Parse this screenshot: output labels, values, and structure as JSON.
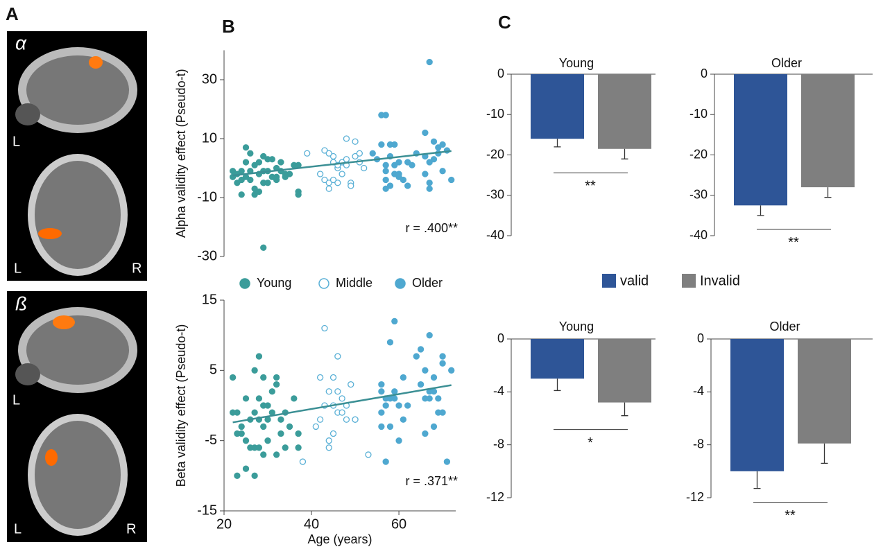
{
  "panel_labels": [
    "A",
    "B",
    "C"
  ],
  "panel_a": {
    "images": [
      {
        "symbol": "α",
        "sagittal_label": "L",
        "axial_labels": [
          "L",
          "R"
        ]
      },
      {
        "symbol": "ß",
        "sagittal_label": "L",
        "axial_labels": [
          "L",
          "R"
        ]
      }
    ]
  },
  "chart_data": [
    {
      "type": "scatter",
      "ylabel": "Alpha validity effect (Pseudo-t)",
      "annotation": "r = .400**",
      "xlim": [
        20,
        73
      ],
      "ylim": [
        -30,
        40
      ],
      "yticks": [
        30,
        10,
        -10,
        -30
      ],
      "series": [
        {
          "name": "Young",
          "color": "#3b9c9a",
          "marker": "filled",
          "x": [
            22,
            22,
            23,
            23,
            24,
            24,
            24,
            25,
            25,
            25,
            26,
            26,
            26,
            27,
            27,
            27,
            28,
            28,
            28,
            29,
            29,
            29,
            29,
            30,
            30,
            31,
            31,
            32,
            32,
            33,
            33,
            34,
            34,
            36,
            37,
            37,
            37,
            32,
            35,
            30
          ],
          "y": [
            -1,
            -3,
            -2,
            -5,
            -1,
            -4,
            -9,
            7,
            2,
            -3,
            -4,
            5,
            -1,
            1,
            -7,
            -9,
            -2,
            2,
            -8,
            -27,
            4,
            -1,
            -5,
            3,
            -1,
            -3,
            3,
            0,
            -4,
            -1,
            2,
            -2,
            -3,
            1,
            1,
            -8,
            -9,
            -3,
            -2,
            -5
          ]
        },
        {
          "name": "Middle",
          "color": "#5ab0d6",
          "marker": "open",
          "x": [
            39,
            42,
            43,
            43,
            44,
            44,
            45,
            45,
            45,
            46,
            46,
            47,
            47,
            48,
            48,
            49,
            49,
            50,
            50,
            51,
            51,
            52,
            44,
            46,
            48
          ],
          "y": [
            5,
            -2,
            6,
            -4,
            -5,
            -7,
            4,
            -4,
            2,
            0,
            -5,
            2,
            -2,
            10,
            3,
            -5,
            -6,
            9,
            4,
            5,
            2,
            0,
            5,
            1,
            1
          ]
        },
        {
          "name": "Older",
          "color": "#4fa8d0",
          "marker": "filled",
          "x": [
            54,
            55,
            56,
            56,
            57,
            57,
            57,
            57,
            57,
            58,
            58,
            58,
            59,
            59,
            59,
            60,
            60,
            60,
            62,
            62,
            63,
            64,
            66,
            66,
            66,
            67,
            67,
            67,
            68,
            68,
            69,
            69,
            70,
            70,
            72,
            67,
            61,
            71
          ],
          "y": [
            5,
            3,
            8,
            18,
            18,
            -4,
            -7,
            1,
            -1,
            4,
            -6,
            8,
            -2,
            1,
            8,
            -2,
            -3,
            2,
            2,
            -6,
            1,
            5,
            12,
            4,
            -2,
            2,
            -7,
            -5,
            3,
            9,
            5,
            7,
            8,
            -1,
            -4,
            36,
            -4,
            6
          ]
        }
      ],
      "trend": {
        "color": "#3b8f94",
        "x": [
          22,
          72
        ],
        "y": [
          -2.5,
          5.8
        ]
      }
    },
    {
      "type": "scatter",
      "ylabel": "Beta validity effect (Pseudo-t)",
      "xlabel": "Age (years)",
      "annotation": "r = .371**",
      "xlim": [
        20,
        73
      ],
      "ylim": [
        -15,
        15
      ],
      "yticks": [
        15,
        5,
        -5,
        -15
      ],
      "xticks": [
        20,
        40,
        60
      ],
      "series": [
        {
          "color": "#3b9c9a",
          "marker": "filled",
          "x": [
            22,
            22,
            23,
            23,
            23,
            24,
            24,
            25,
            25,
            25,
            26,
            26,
            27,
            27,
            27,
            27,
            28,
            28,
            28,
            28,
            29,
            29,
            29,
            29,
            30,
            30,
            30,
            31,
            31,
            32,
            32,
            32,
            33,
            33,
            34,
            34,
            35,
            36,
            37,
            37
          ],
          "y": [
            4,
            -1,
            -1,
            -4,
            -10,
            -3,
            -4,
            -5,
            1,
            -9,
            -6,
            -2,
            5,
            -1,
            -6,
            -10,
            7,
            1,
            -2,
            -6,
            4,
            0,
            -3,
            -7,
            0,
            -2,
            -5,
            2,
            -1,
            4,
            3,
            -7,
            -2,
            -4,
            -1,
            -6,
            -3,
            1,
            -4,
            -6
          ]
        },
        {
          "color": "#5ab0d6",
          "marker": "open",
          "x": [
            38,
            42,
            42,
            43,
            43,
            44,
            44,
            44,
            45,
            45,
            45,
            46,
            46,
            46,
            47,
            47,
            48,
            48,
            49,
            50,
            50,
            53,
            41
          ],
          "y": [
            -8,
            -2,
            4,
            11,
            0,
            -5,
            -6,
            2,
            4,
            -4,
            0,
            7,
            2,
            -1,
            1,
            -1,
            -2,
            0,
            3,
            -2,
            -2,
            -7,
            -3
          ]
        },
        {
          "color": "#4fa8d0",
          "marker": "filled",
          "x": [
            56,
            56,
            56,
            56,
            57,
            57,
            57,
            58,
            58,
            58,
            59,
            59,
            59,
            60,
            60,
            61,
            61,
            62,
            64,
            65,
            65,
            66,
            66,
            66,
            67,
            67,
            67,
            68,
            68,
            68,
            69,
            69,
            70,
            70,
            70,
            71,
            72
          ],
          "y": [
            3,
            -1,
            -3,
            2,
            1,
            -8,
            0,
            9,
            1,
            -3,
            12,
            2,
            1,
            0,
            -5,
            -2,
            4,
            0,
            7,
            8,
            3,
            5,
            1,
            -4,
            1,
            2,
            10,
            4,
            2,
            -3,
            1,
            -1,
            -1,
            6,
            7,
            -8,
            5
          ]
        }
      ],
      "trend": {
        "color": "#3b8f94",
        "x": [
          22,
          72
        ],
        "y": [
          -2.4,
          2.9
        ]
      }
    },
    {
      "type": "bar",
      "title": "Young",
      "significance": "**",
      "ylim": [
        -40,
        0
      ],
      "yticks": [
        0,
        -10,
        -20,
        -30,
        -40
      ],
      "series": [
        {
          "name": "valid",
          "color": "#2e5597",
          "values": [
            -16
          ],
          "errors": [
            2
          ]
        },
        {
          "name": "Invalid",
          "color": "#7f7f7f",
          "values": [
            -18.5
          ],
          "errors": [
            2.5
          ]
        }
      ]
    },
    {
      "type": "bar",
      "title": "Older",
      "significance": "**",
      "ylim": [
        -40,
        0
      ],
      "yticks": [
        0,
        -10,
        -20,
        -30,
        -40
      ],
      "series": [
        {
          "color": "#2e5597",
          "values": [
            -32.5
          ],
          "errors": [
            2.5
          ]
        },
        {
          "color": "#7f7f7f",
          "values": [
            -28
          ],
          "errors": [
            2.5
          ]
        }
      ]
    },
    {
      "type": "bar",
      "title": "Young",
      "significance": "*",
      "ylim": [
        -12,
        0
      ],
      "yticks": [
        0,
        -4,
        -8,
        -12
      ],
      "series": [
        {
          "color": "#2e5597",
          "values": [
            -3
          ],
          "errors": [
            0.9
          ]
        },
        {
          "color": "#7f7f7f",
          "values": [
            -4.8
          ],
          "errors": [
            1
          ]
        }
      ]
    },
    {
      "type": "bar",
      "title": "Older",
      "significance": "**",
      "ylim": [
        -12,
        0
      ],
      "yticks": [
        0,
        -4,
        -8,
        -12
      ],
      "series": [
        {
          "color": "#2e5597",
          "values": [
            -10
          ],
          "errors": [
            1.3
          ]
        },
        {
          "color": "#7f7f7f",
          "values": [
            -7.9
          ],
          "errors": [
            1.5
          ]
        }
      ]
    }
  ]
}
